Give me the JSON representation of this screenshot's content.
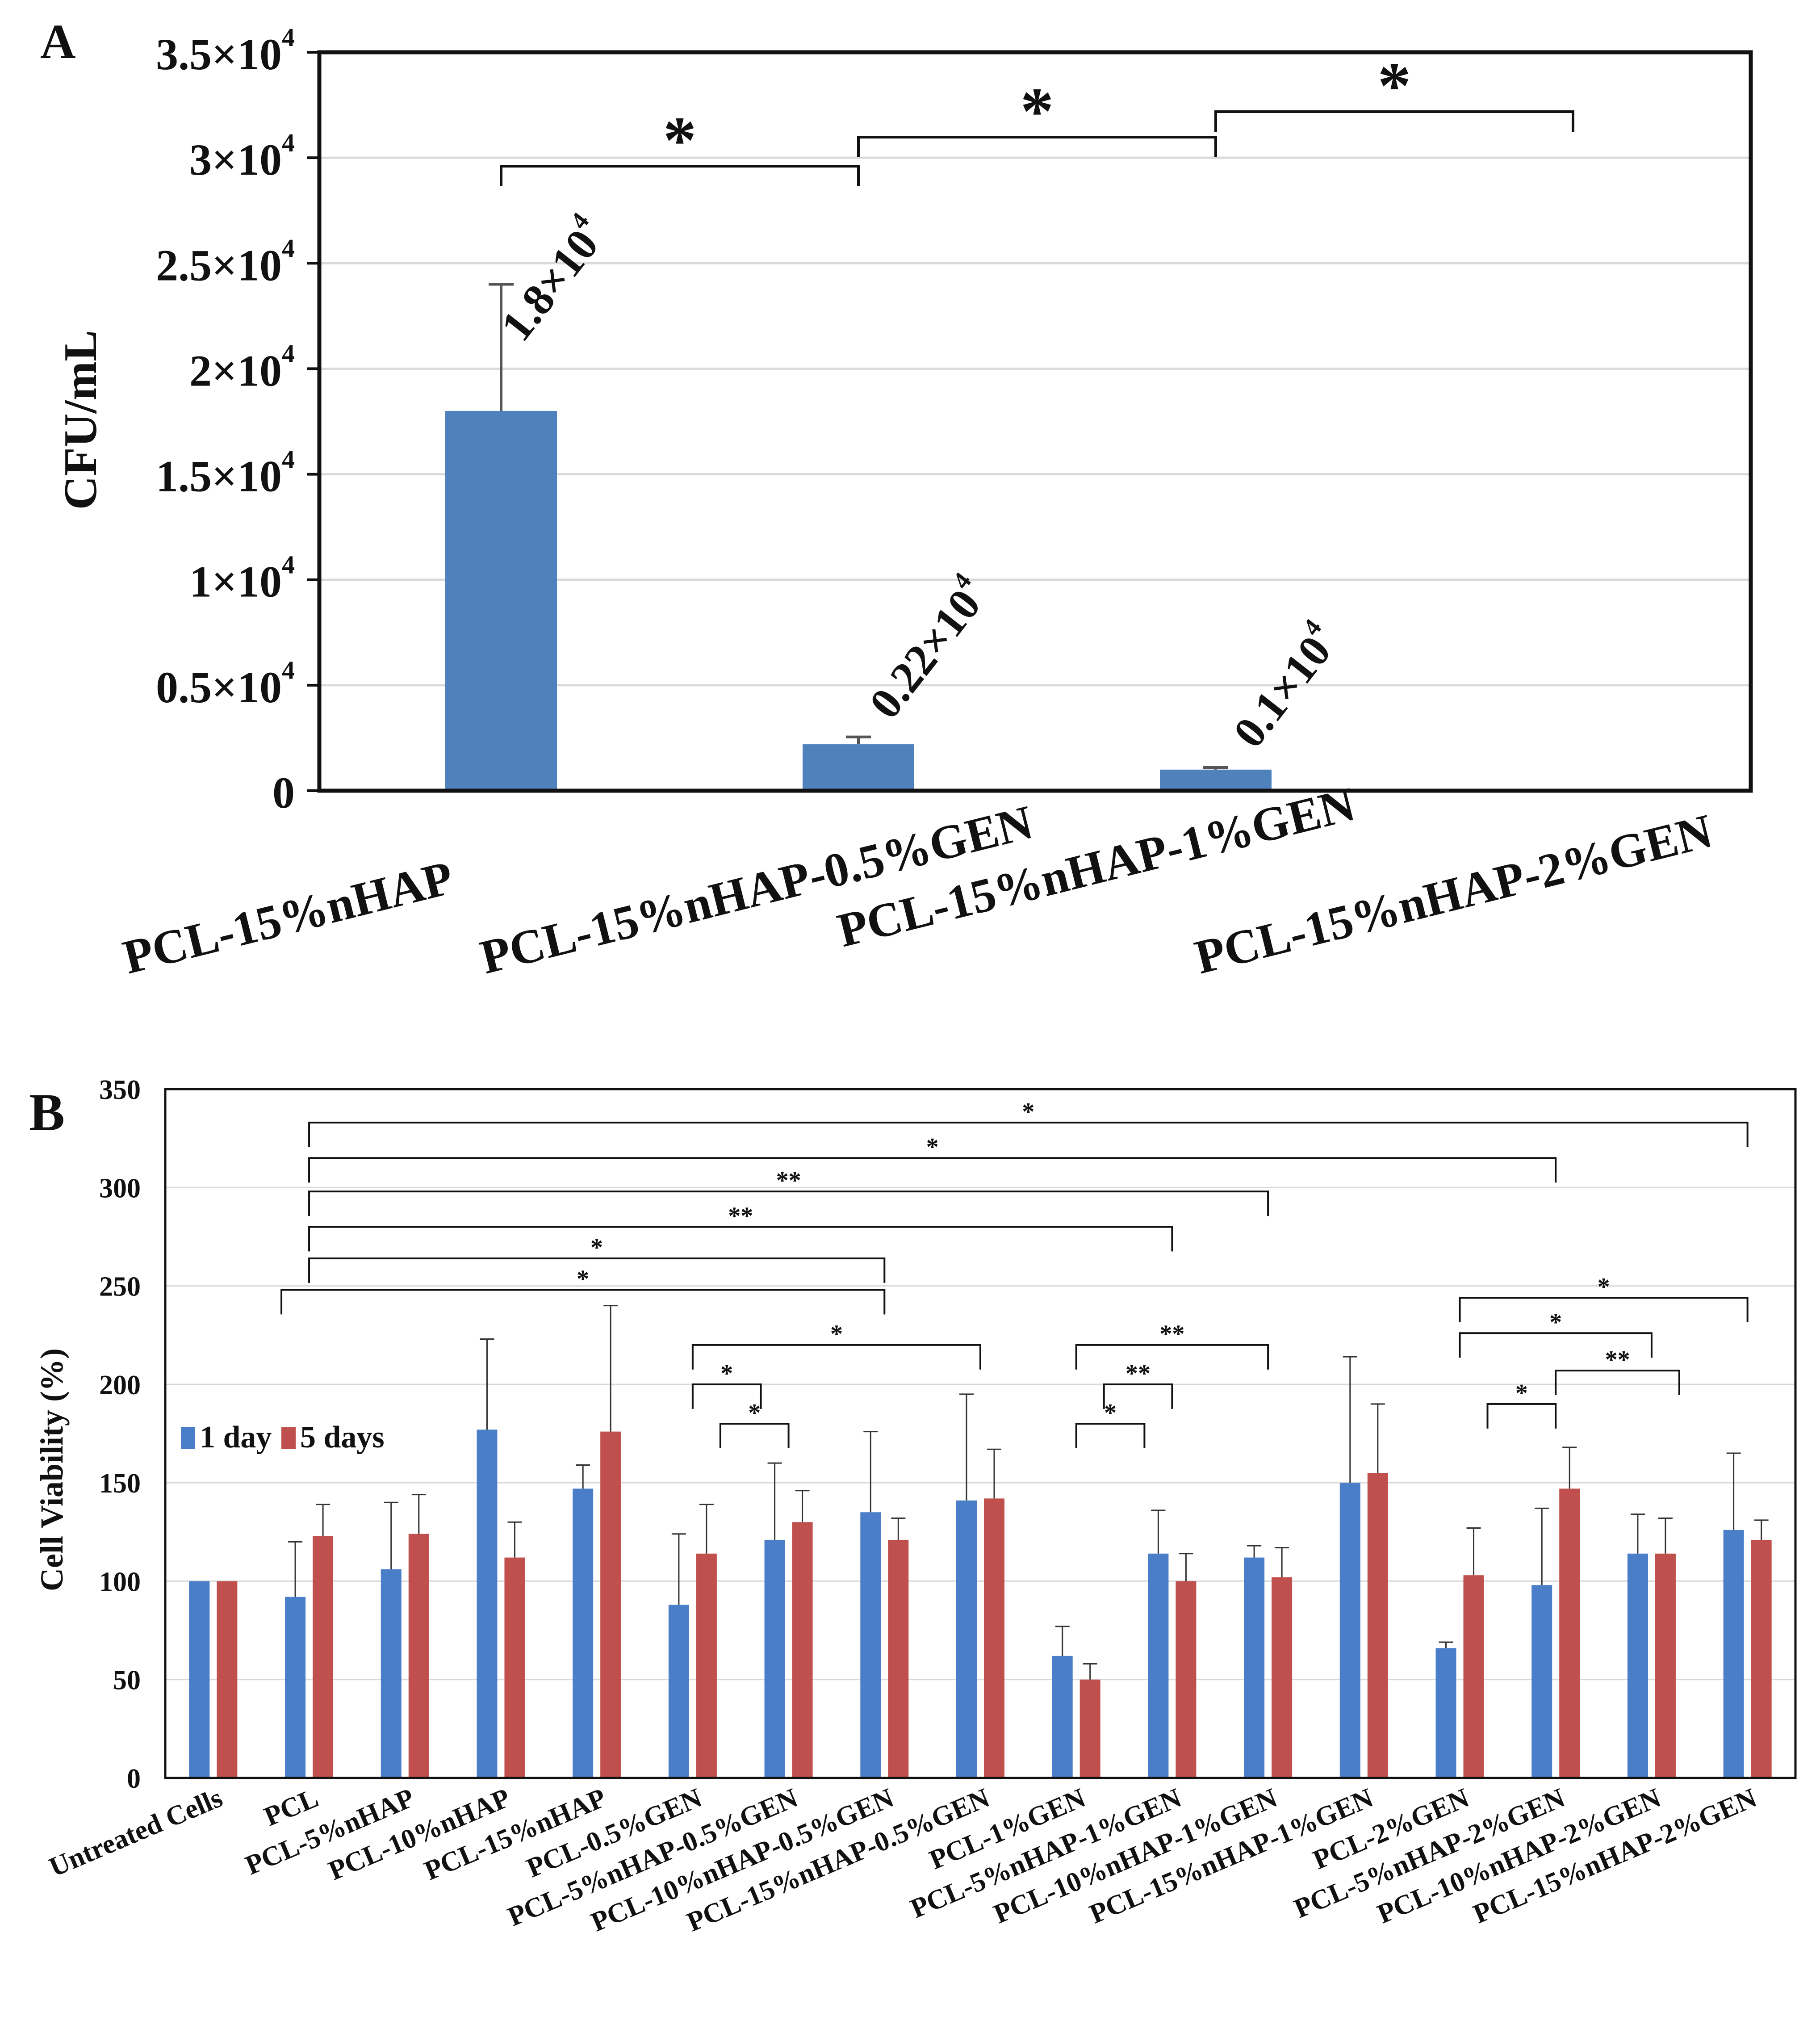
{
  "panels": {
    "a": "A",
    "b": "B"
  },
  "chart_data": [
    {
      "panel": "A",
      "type": "bar",
      "title": "",
      "xlabel": "",
      "ylabel": "CFU/mL",
      "ylim": [
        0,
        35000
      ],
      "grid": true,
      "categories": [
        "PCL-15%nHAP",
        "PCL-15%nHAP-0.5%GEN",
        "PCL-15%nHAP-1%GEN",
        "PCL-15%nHAP-2%GEN"
      ],
      "values": [
        18000,
        2200,
        1000,
        0
      ],
      "errors": [
        6000,
        350,
        100,
        0
      ],
      "color": "#4f81bd",
      "y_ticks": [
        {
          "value": 0,
          "base": "0",
          "exp": ""
        },
        {
          "value": 5000,
          "base": "0.5×10",
          "exp": "4"
        },
        {
          "value": 10000,
          "base": "1×10",
          "exp": "4"
        },
        {
          "value": 15000,
          "base": "1.5×10",
          "exp": "4"
        },
        {
          "value": 20000,
          "base": "2×10",
          "exp": "4"
        },
        {
          "value": 25000,
          "base": "2.5×10",
          "exp": "4"
        },
        {
          "value": 30000,
          "base": "3×10",
          "exp": "4"
        },
        {
          "value": 35000,
          "base": "3.5×10",
          "exp": "4"
        }
      ],
      "data_labels": [
        {
          "index": 0,
          "base": "1.8×10",
          "exp": "4"
        },
        {
          "index": 1,
          "base": "0.22×10",
          "exp": "4"
        },
        {
          "index": 2,
          "base": "0.1×10",
          "exp": "4"
        }
      ],
      "significance": [
        {
          "from": 0,
          "to": 1,
          "label": "*"
        },
        {
          "from": 1,
          "to": 2,
          "label": "*"
        },
        {
          "from": 2,
          "to": 3,
          "label": "*"
        }
      ]
    },
    {
      "panel": "B",
      "type": "bar",
      "title": "",
      "xlabel": "",
      "ylabel": "Cell Viability (%)",
      "ylim": [
        0,
        350
      ],
      "y_ticks": [
        0,
        50,
        100,
        150,
        200,
        250,
        300,
        350
      ],
      "grid": true,
      "legend_position": "left",
      "categories": [
        "Untreated Cells",
        "PCL",
        "PCL-5%nHAP",
        "PCL-10%nHAP",
        "PCL-15%nHAP",
        "PCL-0.5%GEN",
        "PCL-5%nHAP-0.5%GEN",
        "PCL-10%nHAP-0.5%GEN",
        "PCL-15%nHAP-0.5%GEN",
        "PCL-1%GEN",
        "PCL-5%nHAP-1%GEN",
        "PCL-10%nHAP-1%GEN",
        "PCL-15%nHAP-1%GEN",
        "PCL-2%GEN",
        "PCL-5%nHAP-2%GEN",
        "PCL-10%nHAP-2%GEN",
        "PCL-15%nHAP-2%GEN"
      ],
      "series": [
        {
          "name": "1 day",
          "color": "#4a7ec8",
          "values": [
            100,
            92,
            106,
            177,
            147,
            88,
            121,
            135,
            141,
            62,
            114,
            112,
            150,
            66,
            98,
            114,
            126
          ],
          "errors": [
            0,
            28,
            34,
            46,
            12,
            36,
            39,
            41,
            54,
            15,
            22,
            6,
            64,
            3,
            39,
            20,
            39
          ]
        },
        {
          "name": "5 days",
          "color": "#c0504d",
          "values": [
            100,
            123,
            124,
            112,
            176,
            114,
            130,
            121,
            142,
            50,
            100,
            102,
            155,
            103,
            147,
            114,
            121
          ],
          "errors": [
            0,
            16,
            20,
            18,
            64,
            25,
            16,
            11,
            25,
            8,
            14,
            15,
            35,
            24,
            21,
            18,
            10
          ]
        }
      ],
      "significance": [
        {
          "from": 1,
          "to": 16,
          "level": 333,
          "label": "*"
        },
        {
          "from": 1,
          "to": 14,
          "level": 315,
          "label": "*"
        },
        {
          "from": 1,
          "to": 11,
          "level": 298,
          "label": "**"
        },
        {
          "from": 1,
          "to": 10,
          "level": 280,
          "label": "**"
        },
        {
          "from": 1,
          "to": 7,
          "level": 264,
          "label": "*"
        },
        {
          "from": 1,
          "to": 7,
          "level": 248,
          "label": "*",
          "left_offset": -1
        },
        {
          "from": 5,
          "to": 8,
          "level": 220,
          "label": "*"
        },
        {
          "from": 5,
          "to": 6,
          "level": 200,
          "label": "*",
          "right_offset": -1
        },
        {
          "from": 5,
          "to": 6,
          "level": 180,
          "label": "*",
          "left_offset": 1
        },
        {
          "from": 9,
          "to": 11,
          "level": 220,
          "label": "**"
        },
        {
          "from": 9,
          "to": 10,
          "level": 200,
          "label": "**",
          "left_offset": 1
        },
        {
          "from": 9,
          "to": 10,
          "level": 180,
          "label": "*",
          "right_offset": -1
        },
        {
          "from": 13,
          "to": 16,
          "level": 244,
          "label": "*"
        },
        {
          "from": 13,
          "to": 15,
          "level": 226,
          "label": "*"
        },
        {
          "from": 14,
          "to": 15,
          "level": 207,
          "label": "**",
          "right_offset": 1
        },
        {
          "from": 13,
          "to": 14,
          "level": 190,
          "label": "*",
          "left_offset": 1
        }
      ]
    }
  ]
}
